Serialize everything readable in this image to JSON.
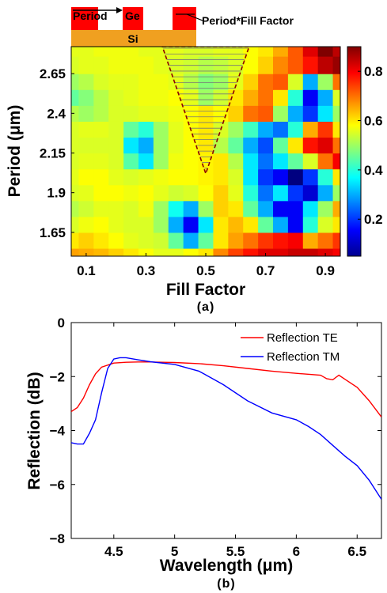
{
  "chart_data": [
    {
      "type": "heatmap",
      "subplot_label": "(a)",
      "xlabel": "Fill Factor",
      "ylabel": "Period (μm)",
      "x_ticks": [
        "0.1",
        "0.3",
        "0.5",
        "0.7",
        "0.9"
      ],
      "y_ticks": [
        "2.65",
        "2.4",
        "2.15",
        "1.9",
        "1.65"
      ],
      "x_tick_values": [
        0.1,
        0.3,
        0.5,
        0.7,
        0.9
      ],
      "y_tick_values": [
        2.65,
        2.4,
        2.15,
        1.9,
        1.65
      ],
      "xlim": [
        0.05,
        0.95
      ],
      "ylim": [
        1.5,
        2.82
      ],
      "colorbar": {
        "ticks": [
          "0.2",
          "0.4",
          "0.6",
          "0.8"
        ],
        "tick_values": [
          0.2,
          0.4,
          0.6,
          0.8
        ],
        "range": [
          0.05,
          0.9
        ],
        "colormap": "jet"
      },
      "x_grid": [
        0.05,
        0.1,
        0.15,
        0.2,
        0.25,
        0.3,
        0.35,
        0.4,
        0.45,
        0.5,
        0.55,
        0.6,
        0.65,
        0.7,
        0.75,
        0.8,
        0.85,
        0.9,
        0.95
      ],
      "y_grid": [
        1.5,
        1.6,
        1.7,
        1.8,
        1.9,
        2.0,
        2.1,
        2.2,
        2.3,
        2.4,
        2.5,
        2.6,
        2.7,
        2.82
      ],
      "z": [
        [
          0.66,
          0.65,
          0.64,
          0.62,
          0.6,
          0.58,
          0.56,
          0.56,
          0.58,
          0.6,
          0.68,
          0.74,
          0.78,
          0.82,
          0.82,
          0.84,
          0.84,
          0.82,
          0.8
        ],
        [
          0.6,
          0.62,
          0.6,
          0.58,
          0.56,
          0.55,
          0.54,
          0.45,
          0.3,
          0.45,
          0.6,
          0.66,
          0.7,
          0.75,
          0.78,
          0.8,
          0.65,
          0.7,
          0.75
        ],
        [
          0.55,
          0.57,
          0.58,
          0.56,
          0.55,
          0.55,
          0.5,
          0.3,
          0.15,
          0.35,
          0.6,
          0.64,
          0.6,
          0.45,
          0.3,
          0.15,
          0.4,
          0.55,
          0.6
        ],
        [
          0.52,
          0.54,
          0.56,
          0.56,
          0.55,
          0.57,
          0.5,
          0.38,
          0.3,
          0.5,
          0.62,
          0.6,
          0.45,
          0.3,
          0.15,
          0.15,
          0.35,
          0.5,
          0.65
        ],
        [
          0.55,
          0.56,
          0.58,
          0.58,
          0.57,
          0.58,
          0.56,
          0.54,
          0.55,
          0.58,
          0.62,
          0.56,
          0.4,
          0.25,
          0.35,
          0.2,
          0.12,
          0.3,
          0.5
        ],
        [
          0.56,
          0.58,
          0.58,
          0.56,
          0.55,
          0.56,
          0.57,
          0.58,
          0.58,
          0.59,
          0.6,
          0.55,
          0.35,
          0.2,
          0.15,
          0.05,
          0.2,
          0.4,
          0.6
        ],
        [
          0.55,
          0.56,
          0.56,
          0.55,
          0.44,
          0.35,
          0.5,
          0.57,
          0.58,
          0.59,
          0.6,
          0.52,
          0.35,
          0.25,
          0.35,
          0.45,
          0.55,
          0.7,
          0.8
        ],
        [
          0.55,
          0.55,
          0.55,
          0.55,
          0.35,
          0.3,
          0.5,
          0.56,
          0.58,
          0.6,
          0.52,
          0.45,
          0.3,
          0.22,
          0.45,
          0.6,
          0.78,
          0.82,
          0.7
        ],
        [
          0.55,
          0.56,
          0.56,
          0.55,
          0.45,
          0.4,
          0.5,
          0.56,
          0.58,
          0.6,
          0.55,
          0.5,
          0.42,
          0.3,
          0.25,
          0.4,
          0.65,
          0.75,
          0.6
        ],
        [
          0.52,
          0.5,
          0.52,
          0.55,
          0.55,
          0.56,
          0.56,
          0.57,
          0.58,
          0.6,
          0.58,
          0.62,
          0.7,
          0.72,
          0.5,
          0.3,
          0.2,
          0.35,
          0.5
        ],
        [
          0.45,
          0.48,
          0.52,
          0.55,
          0.56,
          0.57,
          0.57,
          0.58,
          0.56,
          0.5,
          0.54,
          0.6,
          0.65,
          0.7,
          0.6,
          0.4,
          0.15,
          0.3,
          0.55
        ],
        [
          0.5,
          0.52,
          0.55,
          0.56,
          0.56,
          0.57,
          0.57,
          0.56,
          0.52,
          0.48,
          0.5,
          0.56,
          0.62,
          0.7,
          0.72,
          0.55,
          0.3,
          0.5,
          0.7
        ],
        [
          0.55,
          0.56,
          0.56,
          0.57,
          0.57,
          0.57,
          0.56,
          0.55,
          0.54,
          0.52,
          0.53,
          0.55,
          0.58,
          0.62,
          0.68,
          0.72,
          0.78,
          0.85,
          0.88
        ],
        [
          0.56,
          0.56,
          0.57,
          0.57,
          0.57,
          0.56,
          0.56,
          0.56,
          0.55,
          0.55,
          0.56,
          0.56,
          0.58,
          0.6,
          0.65,
          0.72,
          0.82,
          0.9,
          0.85
        ]
      ],
      "annotations": {
        "hatched_region": "triangle",
        "schematic": {
          "labels": [
            "Period",
            "Ge",
            "Period*Fill Factor",
            "Si"
          ]
        }
      }
    },
    {
      "type": "line",
      "subplot_label": "(b)",
      "xlabel": "Wavelength (μm)",
      "ylabel": "Reflection (dB)",
      "xlim": [
        4.15,
        6.7
      ],
      "ylim": [
        -8,
        0
      ],
      "x_ticks": [
        "4.5",
        "5",
        "5.5",
        "6",
        "6.5"
      ],
      "y_ticks": [
        "0",
        "−2",
        "−4",
        "−6",
        "−8"
      ],
      "x_tick_values": [
        4.5,
        5,
        5.5,
        6,
        6.5
      ],
      "y_tick_values": [
        0,
        -2,
        -4,
        -6,
        -8
      ],
      "legend_position": "top-right",
      "series": [
        {
          "name": "Reflection TE",
          "color": "#ff0000",
          "x": [
            4.15,
            4.2,
            4.25,
            4.3,
            4.35,
            4.4,
            4.5,
            4.6,
            4.7,
            4.8,
            4.9,
            5.0,
            5.2,
            5.4,
            5.6,
            5.8,
            6.0,
            6.2,
            6.25,
            6.3,
            6.35,
            6.4,
            6.5,
            6.6,
            6.7
          ],
          "y": [
            -3.3,
            -3.15,
            -2.8,
            -2.3,
            -1.9,
            -1.65,
            -1.5,
            -1.47,
            -1.46,
            -1.46,
            -1.47,
            -1.48,
            -1.52,
            -1.6,
            -1.7,
            -1.8,
            -1.88,
            -1.95,
            -2.08,
            -2.12,
            -1.95,
            -2.1,
            -2.4,
            -2.9,
            -3.5
          ]
        },
        {
          "name": "Reflection TM",
          "color": "#0000ff",
          "x": [
            4.15,
            4.2,
            4.25,
            4.3,
            4.35,
            4.4,
            4.45,
            4.5,
            4.55,
            4.6,
            4.7,
            4.8,
            5.0,
            5.2,
            5.4,
            5.6,
            5.8,
            6.0,
            6.1,
            6.2,
            6.3,
            6.4,
            6.5,
            6.6,
            6.7
          ],
          "y": [
            -4.45,
            -4.5,
            -4.5,
            -4.1,
            -3.6,
            -2.6,
            -1.7,
            -1.35,
            -1.3,
            -1.3,
            -1.38,
            -1.45,
            -1.55,
            -1.8,
            -2.3,
            -2.9,
            -3.35,
            -3.6,
            -3.85,
            -4.15,
            -4.55,
            -4.95,
            -5.3,
            -5.85,
            -6.55
          ]
        }
      ]
    }
  ]
}
